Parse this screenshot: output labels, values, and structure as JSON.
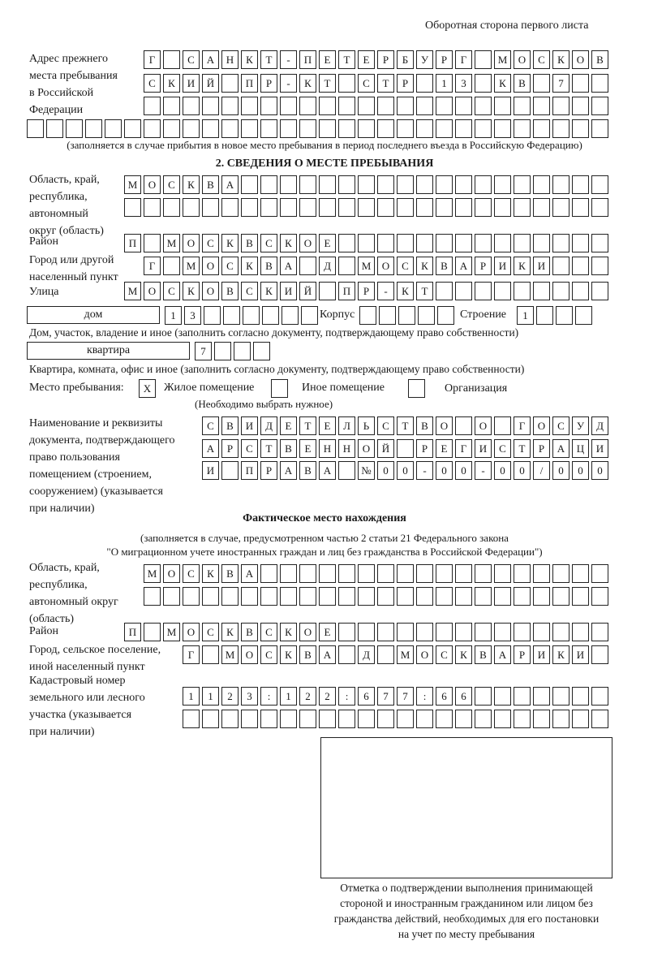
{
  "header": {
    "page_side": "Оборотная сторона первого листа"
  },
  "previous_address": {
    "label": "Адрес прежнего\nместа пребывания\nв Российской\nФедерации",
    "rows": [
      "Г САНКТ-ПЕТЕРБУРГ МОСКОВ",
      "СКИЙ ПР-КТ СТР 13 КВ 7  ",
      "                        ",
      "                              "
    ],
    "note": "(заполняется в случае прибытия в новое место пребывания в период последнего въезда в Российскую Федерацию)"
  },
  "section2": {
    "title": "2. СВЕДЕНИЯ О МЕСТЕ ПРЕБЫВАНИЯ",
    "region_label": "Область, край,\nреспублика,\nавтономный\nокруг (область)",
    "region_rows": [
      "МОСКВА                   ",
      "                         "
    ],
    "district_label": "Район",
    "district_row": "П МОСКВСКОЕ              ",
    "city_label": "Город или другой\nнаселенный пункт",
    "city_row": "Г МОСКВА Д МОСКВАРИКИ   ",
    "street_label": "Улица",
    "street_row": "МОСКОВСКИЙ ПР-КТ         ",
    "house_type": "дом",
    "house_cells": "13      ",
    "korpus_label": "Корпус",
    "korpus_cells": "     ",
    "building_label": "Строение",
    "building_cells": "1   ",
    "house_note": "Дом, участок, владение и иное (заполнить согласно документу, подтверждающему право собственности)",
    "apt_type": "квартира",
    "apt_cells": "7   ",
    "apt_note": "Квартира, комната, офис и иное (заполнить согласно документу, подтверждающему право собственности)",
    "stay_place_label": "Место пребывания:",
    "options": [
      {
        "label": "Жилое помещение",
        "mark": "X"
      },
      {
        "label": "Иное помещение",
        "mark": ""
      },
      {
        "label": "Организация",
        "mark": ""
      }
    ],
    "choose_note": "(Необходимо выбрать нужное)",
    "doc_label": "Наименование и реквизиты\nдокумента, подтверждающего\nправо пользования\nпомещением (строением,\nсооружением) (указывается\nпри наличии)",
    "doc_rows": [
      "СВИДЕТЕЛЬСТВО О ГОСУД",
      "АРСТВЕННОЙ РЕГИСТРАЦИ",
      "И ПРАВА №00-00-00/000"
    ]
  },
  "actual_location": {
    "title": "Фактическое место нахождения",
    "note1": "(заполняется в случае, предусмотренном частью 2 статьи 21 Федерального закона",
    "note2": "\"О миграционном учете иностранных граждан и лиц без гражданства в Российской Федерации\")",
    "region_label": "Область, край,\nреспублика,\nавтономный округ\n(область)",
    "region_rows": [
      "МОСКВА                  ",
      "                        "
    ],
    "district_label": "Район",
    "district_row": "П МОСКВСКОЕ              ",
    "city_label": "Город, сельское поселение,\nиной населенный пункт",
    "city_row": "Г МОСКВА Д МОСКВАРИКИ ",
    "cadastral_label": "Кадастровый номер\nземельного или лесного\nучастка (указывается\nпри наличии)",
    "cadastral_rows": [
      "1123:122:677:66       ",
      "                      "
    ]
  },
  "confirmation": {
    "caption": "Отметка о подтверждении выполнения принимающей\nстороной и иностранным гражданином или лицом без\nгражданства действий, необходимых для его постановки\nна учет по месту пребывания"
  }
}
